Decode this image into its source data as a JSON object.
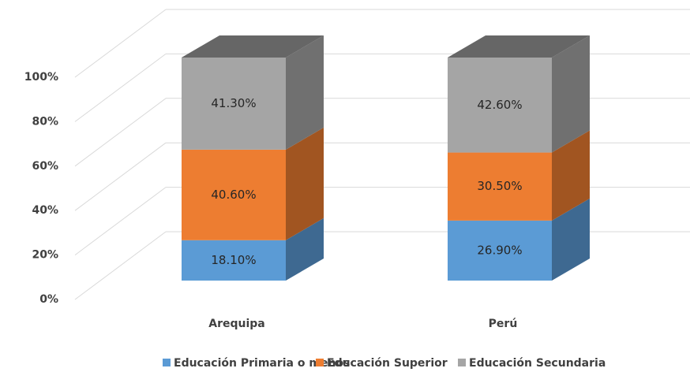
{
  "chart_data": {
    "type": "bar3d_stacked",
    "categories": [
      "Arequipa",
      "Perú"
    ],
    "series": [
      {
        "name": "Educación Primaria o menos",
        "color": "#5b9bd5",
        "values": [
          18.1,
          26.9
        ],
        "value_labels": [
          "18.10%",
          "26.90%"
        ]
      },
      {
        "name": "Educación Superior",
        "color": "#ed7d31",
        "values": [
          40.6,
          30.5
        ],
        "value_labels": [
          "40.60%",
          "30.50%"
        ]
      },
      {
        "name": "Educación Secundaria",
        "color": "#a5a5a5",
        "values": [
          41.3,
          42.6
        ],
        "value_labels": [
          "41.30%",
          "42.60%"
        ]
      }
    ],
    "ylim": [
      0,
      100
    ],
    "yticks": [
      {
        "value": 0,
        "label": "0%"
      },
      {
        "value": 20,
        "label": "20%"
      },
      {
        "value": 40,
        "label": "40%"
      },
      {
        "value": 60,
        "label": "60%"
      },
      {
        "value": 80,
        "label": "80%"
      },
      {
        "value": 100,
        "label": "100%"
      }
    ],
    "grid": true,
    "legend": "bottom"
  }
}
